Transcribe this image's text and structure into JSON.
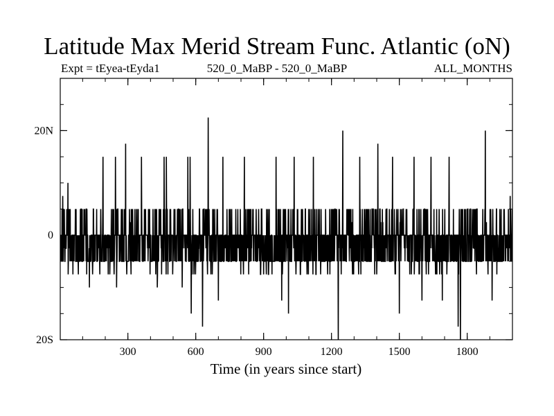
{
  "chart_data": {
    "type": "line",
    "title": "Latitude Max Merid Stream Func. Atlantic (oN)",
    "subtitle_left": "Expt = tEyea-tEyda1",
    "subtitle_center": "520_0_MaBP - 520_0_MaBP",
    "subtitle_right": "ALL_MONTHS",
    "xlabel": "Time (in years since start)",
    "ylabel": "",
    "xlim": [
      1,
      2000
    ],
    "ylim": [
      -20,
      30
    ],
    "x_ticks": [
      {
        "value": 300,
        "label": "300"
      },
      {
        "value": 600,
        "label": "600"
      },
      {
        "value": 900,
        "label": "900"
      },
      {
        "value": 1200,
        "label": "1200"
      },
      {
        "value": 1500,
        "label": "1500"
      },
      {
        "value": 1800,
        "label": "1800"
      }
    ],
    "y_ticks": [
      {
        "value": 20,
        "label": "20N"
      },
      {
        "value": 0,
        "label": "0"
      },
      {
        "value": -20,
        "label": "20S"
      }
    ],
    "y_minor_step": 5,
    "x_minor_step": 100,
    "series_note": "Annual values fluctuate mostly between about -7.5 and 5 with frequent spikes to about 15 and occasional extremes near 22.5 (year ~655) and -20 (years ~1230 and ~1770).",
    "peaks": [
      {
        "x": 12,
        "y": 7.5
      },
      {
        "x": 35,
        "y": 10
      },
      {
        "x": 190,
        "y": 15
      },
      {
        "x": 245,
        "y": 15
      },
      {
        "x": 290,
        "y": 17.5
      },
      {
        "x": 360,
        "y": 15
      },
      {
        "x": 460,
        "y": 15
      },
      {
        "x": 470,
        "y": 15
      },
      {
        "x": 565,
        "y": 15
      },
      {
        "x": 575,
        "y": 15
      },
      {
        "x": 655,
        "y": 22.5
      },
      {
        "x": 720,
        "y": 15
      },
      {
        "x": 815,
        "y": 15
      },
      {
        "x": 955,
        "y": 15
      },
      {
        "x": 1035,
        "y": 15
      },
      {
        "x": 1120,
        "y": 15
      },
      {
        "x": 1250,
        "y": 20
      },
      {
        "x": 1325,
        "y": 15
      },
      {
        "x": 1405,
        "y": 17.5
      },
      {
        "x": 1470,
        "y": 15
      },
      {
        "x": 1565,
        "y": 15
      },
      {
        "x": 1640,
        "y": 15
      },
      {
        "x": 1720,
        "y": 15
      },
      {
        "x": 1880,
        "y": 20
      },
      {
        "x": 1990,
        "y": 7.5
      }
    ],
    "troughs": [
      {
        "x": 130,
        "y": -10
      },
      {
        "x": 250,
        "y": -10
      },
      {
        "x": 430,
        "y": -10
      },
      {
        "x": 540,
        "y": -10
      },
      {
        "x": 580,
        "y": -15
      },
      {
        "x": 630,
        "y": -17.5
      },
      {
        "x": 700,
        "y": -12.5
      },
      {
        "x": 980,
        "y": -12.5
      },
      {
        "x": 1010,
        "y": -15
      },
      {
        "x": 1230,
        "y": -20
      },
      {
        "x": 1500,
        "y": -15
      },
      {
        "x": 1600,
        "y": -12.5
      },
      {
        "x": 1690,
        "y": -12.5
      },
      {
        "x": 1760,
        "y": -17.5
      },
      {
        "x": 1770,
        "y": -20
      },
      {
        "x": 1910,
        "y": -12.5
      }
    ]
  }
}
